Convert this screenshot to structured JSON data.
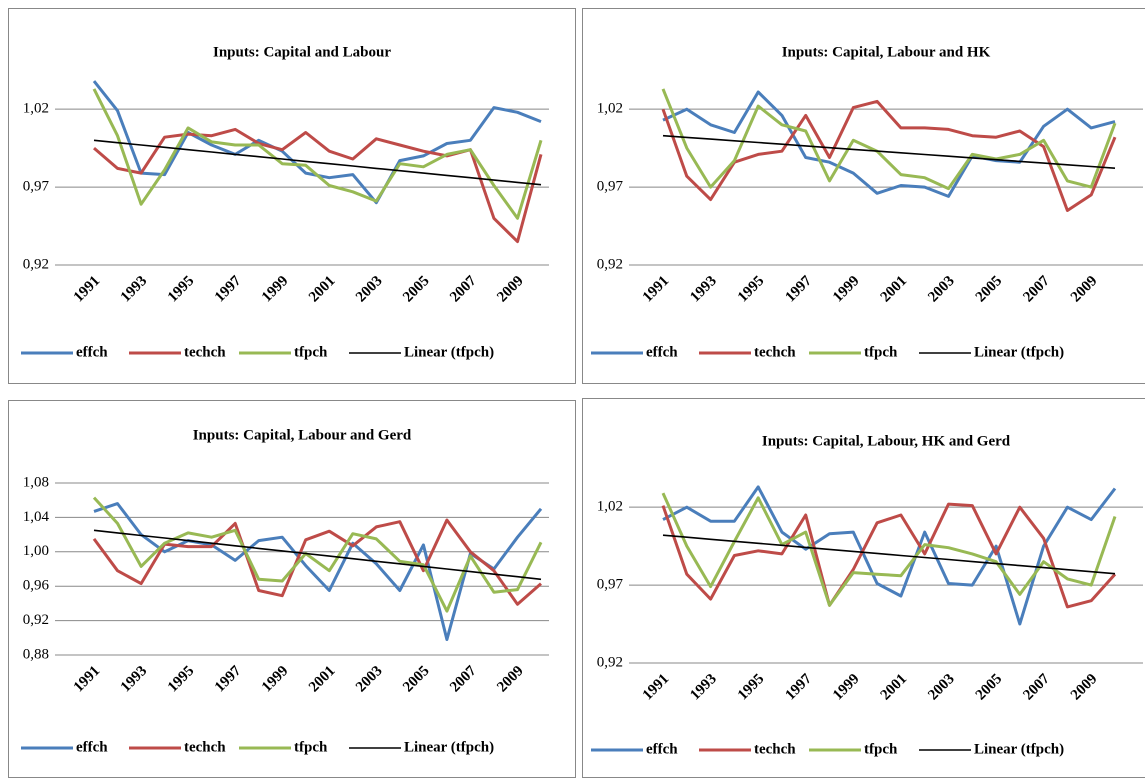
{
  "chart_data": [
    {
      "type": "line",
      "title": "Inputs: Capital and Labour",
      "categories": [
        "1991",
        null,
        "1993",
        null,
        "1995",
        null,
        "1997",
        null,
        "1999",
        null,
        "2001",
        null,
        "2003",
        null,
        "2005",
        null,
        "2007",
        null,
        "2009",
        null
      ],
      "series": [
        {
          "name": "effch",
          "color": "#4a7ebb",
          "values": [
            1.038,
            1.019,
            0.979,
            0.978,
            1.005,
            0.997,
            0.991,
            1.0,
            0.993,
            0.979,
            0.976,
            0.978,
            0.96,
            0.987,
            0.99,
            0.998,
            1.0,
            1.021,
            1.018,
            1.012
          ]
        },
        {
          "name": "techch",
          "color": "#be4b48",
          "values": [
            0.995,
            0.982,
            0.979,
            1.002,
            1.004,
            1.003,
            1.007,
            0.998,
            0.994,
            1.005,
            0.993,
            0.988,
            1.001,
            0.997,
            0.993,
            0.99,
            0.994,
            0.95,
            0.935,
            0.991
          ]
        },
        {
          "name": "tfpch",
          "color": "#98b954",
          "values": [
            1.033,
            1.003,
            0.959,
            0.981,
            1.008,
            0.999,
            0.997,
            0.997,
            0.985,
            0.984,
            0.971,
            0.967,
            0.961,
            0.985,
            0.983,
            0.991,
            0.994,
            0.971,
            0.95,
            1.0
          ]
        },
        {
          "name": "Linear (tfpch)",
          "color": "#000000",
          "values": [
            1.0,
            0.9985,
            0.997,
            0.9955,
            0.994,
            0.9925,
            0.991,
            0.9895,
            0.988,
            0.9865,
            0.985,
            0.9835,
            0.982,
            0.9805,
            0.979,
            0.9775,
            0.976,
            0.9745,
            0.973,
            0.9715
          ]
        }
      ],
      "ylim": [
        0.92,
        1.04
      ],
      "yticks": [
        {
          "value": 0.92,
          "label": "0,92"
        },
        {
          "value": 0.97,
          "label": "0,97"
        },
        {
          "value": 1.02,
          "label": "1,02"
        }
      ],
      "grid": true,
      "legend": "bottom"
    },
    {
      "type": "line",
      "title": "Inputs: Capital, Labour and HK",
      "categories": [
        "1991",
        null,
        "1993",
        null,
        "1995",
        null,
        "1997",
        null,
        "1999",
        null,
        "2001",
        null,
        "2003",
        null,
        "2005",
        null,
        "2007",
        null,
        "2009",
        null
      ],
      "series": [
        {
          "name": "effch",
          "color": "#4a7ebb",
          "values": [
            1.013,
            1.02,
            1.01,
            1.005,
            1.031,
            1.016,
            0.989,
            0.986,
            0.979,
            0.966,
            0.971,
            0.97,
            0.964,
            0.99,
            0.987,
            0.986,
            1.009,
            1.02,
            1.008,
            1.012
          ]
        },
        {
          "name": "techch",
          "color": "#be4b48",
          "values": [
            1.02,
            0.977,
            0.962,
            0.986,
            0.991,
            0.993,
            1.016,
            0.989,
            1.021,
            1.025,
            1.008,
            1.008,
            1.007,
            1.003,
            1.002,
            1.006,
            0.996,
            0.955,
            0.965,
            1.002
          ]
        },
        {
          "name": "tfpch",
          "color": "#98b954",
          "values": [
            1.033,
            0.995,
            0.97,
            0.987,
            1.022,
            1.01,
            1.006,
            0.974,
            1.0,
            0.993,
            0.978,
            0.976,
            0.969,
            0.991,
            0.988,
            0.991,
            1.0,
            0.974,
            0.97,
            1.011
          ]
        },
        {
          "name": "Linear (tfpch)",
          "color": "#000000",
          "values": [
            1.003,
            1.0019,
            1.0008,
            0.9997,
            0.9986,
            0.9975,
            0.9964,
            0.9953,
            0.9942,
            0.9931,
            0.992,
            0.9909,
            0.9898,
            0.9887,
            0.9876,
            0.9865,
            0.9854,
            0.9843,
            0.9832,
            0.9821
          ]
        }
      ],
      "ylim": [
        0.92,
        1.04
      ],
      "yticks": [
        {
          "value": 0.92,
          "label": "0,92"
        },
        {
          "value": 0.97,
          "label": "0,97"
        },
        {
          "value": 1.02,
          "label": "1,02"
        }
      ],
      "grid": true,
      "legend": "bottom"
    },
    {
      "type": "line",
      "title": "Inputs: Capital, Labour and Gerd",
      "categories": [
        "1991",
        null,
        "1993",
        null,
        "1995",
        null,
        "1997",
        null,
        "1999",
        null,
        "2001",
        null,
        "2003",
        null,
        "2005",
        null,
        "2007",
        null,
        "2009",
        null
      ],
      "series": [
        {
          "name": "effch",
          "color": "#4a7ebb",
          "values": [
            1.047,
            1.056,
            1.02,
            1.0,
            1.013,
            1.008,
            0.99,
            1.013,
            1.017,
            0.984,
            0.955,
            1.01,
            0.986,
            0.955,
            1.008,
            0.898,
            0.998,
            0.98,
            1.017,
            1.05
          ]
        },
        {
          "name": "techch",
          "color": "#be4b48",
          "values": [
            1.015,
            0.978,
            0.963,
            1.009,
            1.006,
            1.006,
            1.033,
            0.955,
            0.949,
            1.014,
            1.024,
            1.007,
            1.029,
            1.035,
            0.978,
            1.037,
            1.0,
            0.978,
            0.939,
            0.963
          ]
        },
        {
          "name": "tfpch",
          "color": "#98b954",
          "values": [
            1.063,
            1.033,
            0.983,
            1.01,
            1.022,
            1.017,
            1.025,
            0.968,
            0.966,
            0.998,
            0.978,
            1.021,
            1.015,
            0.989,
            0.985,
            0.931,
            0.995,
            0.953,
            0.956,
            1.011
          ]
        },
        {
          "name": "Linear (tfpch)",
          "color": "#000000",
          "values": [
            1.025,
            1.022,
            1.019,
            1.016,
            1.013,
            1.01,
            1.007,
            1.004,
            1.001,
            0.998,
            0.995,
            0.992,
            0.989,
            0.986,
            0.983,
            0.98,
            0.977,
            0.974,
            0.971,
            0.968
          ]
        }
      ],
      "ylim": [
        0.88,
        1.08
      ],
      "yticks": [
        {
          "value": 0.88,
          "label": "0,88"
        },
        {
          "value": 0.92,
          "label": "0,92"
        },
        {
          "value": 0.96,
          "label": "0,96"
        },
        {
          "value": 1.0,
          "label": "1,00"
        },
        {
          "value": 1.04,
          "label": "1,04"
        },
        {
          "value": 1.08,
          "label": "1,08"
        }
      ],
      "grid": true,
      "legend": "bottom"
    },
    {
      "type": "line",
      "title": "Inputs: Capital, Labour, HK and Gerd",
      "categories": [
        "1991",
        null,
        "1993",
        null,
        "1995",
        null,
        "1997",
        null,
        "1999",
        null,
        "2001",
        null,
        "2003",
        null,
        "2005",
        null,
        "2007",
        null,
        "2009",
        null
      ],
      "series": [
        {
          "name": "effch",
          "color": "#4a7ebb",
          "values": [
            1.012,
            1.02,
            1.011,
            1.011,
            1.033,
            1.004,
            0.993,
            1.003,
            1.004,
            0.971,
            0.963,
            1.004,
            0.971,
            0.97,
            0.995,
            0.945,
            0.995,
            1.02,
            1.012,
            1.032
          ]
        },
        {
          "name": "techch",
          "color": "#be4b48",
          "values": [
            1.021,
            0.977,
            0.961,
            0.989,
            0.992,
            0.99,
            1.015,
            0.957,
            0.98,
            1.01,
            1.015,
            0.99,
            1.022,
            1.021,
            0.99,
            1.02,
            1.0,
            0.956,
            0.96,
            0.977
          ]
        },
        {
          "name": "tfpch",
          "color": "#98b954",
          "values": [
            1.029,
            0.995,
            0.969,
            0.998,
            1.026,
            0.996,
            1.004,
            0.957,
            0.978,
            0.977,
            0.976,
            0.996,
            0.994,
            0.99,
            0.985,
            0.964,
            0.985,
            0.974,
            0.97,
            1.014
          ]
        },
        {
          "name": "Linear (tfpch)",
          "color": "#000000",
          "values": [
            1.002,
            1.0007,
            0.9994,
            0.9981,
            0.9968,
            0.9955,
            0.9942,
            0.9929,
            0.9916,
            0.9903,
            0.989,
            0.9877,
            0.9864,
            0.9851,
            0.9838,
            0.9825,
            0.9812,
            0.9799,
            0.9786,
            0.9773
          ]
        }
      ],
      "ylim": [
        0.92,
        1.04
      ],
      "yticks": [
        {
          "value": 0.92,
          "label": "0,92"
        },
        {
          "value": 0.97,
          "label": "0,97"
        },
        {
          "value": 1.02,
          "label": "1,02"
        }
      ],
      "grid": true,
      "legend": "bottom"
    }
  ]
}
